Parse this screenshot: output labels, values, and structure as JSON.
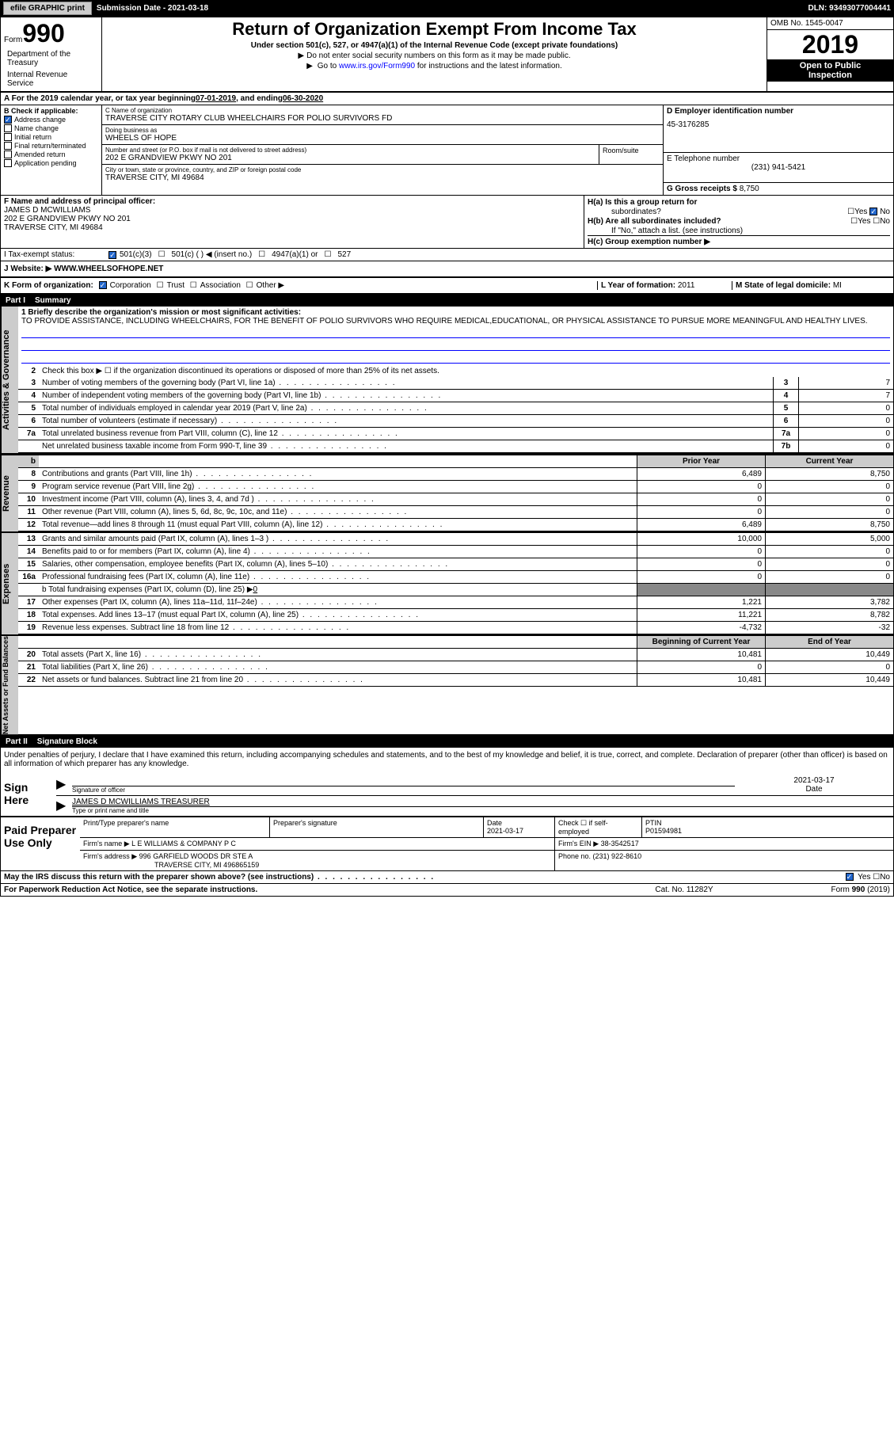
{
  "header": {
    "efile_btn": "efile GRAPHIC print",
    "sub_date_label": "Submission Date - 2021-03-18",
    "dln": "DLN: 93493077004441"
  },
  "form": {
    "form_word": "Form",
    "form_number": "990",
    "title": "Return of Organization Exempt From Income Tax",
    "subtitle": "Under section 501(c), 527, or 4947(a)(1) of the Internal Revenue Code (except private foundations)",
    "ssn_note": "Do not enter social security numbers on this form as it may be made public.",
    "goto_prefix": "Go to ",
    "goto_link": "www.irs.gov/Form990",
    "goto_suffix": " for instructions and the latest information.",
    "dept": "Department of the Treasury",
    "irs": "Internal Revenue Service",
    "omb": "OMB No. 1545-0047",
    "year": "2019",
    "open_public": "Open to Public",
    "inspection": "Inspection"
  },
  "period": {
    "prefix": "A For the 2019 calendar year, or tax year beginning ",
    "begin": "07-01-2019",
    "mid": " , and ending ",
    "end": "06-30-2020"
  },
  "col_b": {
    "label": "B Check if applicable:",
    "items": [
      {
        "label": "Address change",
        "checked": true
      },
      {
        "label": "Name change",
        "checked": false
      },
      {
        "label": "Initial return",
        "checked": false
      },
      {
        "label": "Final return/terminated",
        "checked": false
      },
      {
        "label": "Amended return",
        "checked": false
      },
      {
        "label": "Application pending",
        "checked": false
      }
    ]
  },
  "col_c": {
    "name_label": "C Name of organization",
    "name": "TRAVERSE CITY ROTARY CLUB WHEELCHAIRS FOR POLIO SURVIVORS FD",
    "dba_label": "Doing business as",
    "dba": "WHEELS OF HOPE",
    "addr_label": "Number and street (or P.O. box if mail is not delivered to street address)",
    "addr": "202 E GRANDVIEW PKWY NO 201",
    "room_label": "Room/suite",
    "city_label": "City or town, state or province, country, and ZIP or foreign postal code",
    "city": "TRAVERSE CITY, MI  49684"
  },
  "col_d": {
    "ein_label": "D Employer identification number",
    "ein": "45-3176285",
    "phone_label": "E Telephone number",
    "phone": "(231) 941-5421",
    "gross_label": "G Gross receipts $ ",
    "gross": "8,750"
  },
  "col_f": {
    "label": "F  Name and address of principal officer:",
    "name": "JAMES D MCWILLIAMS",
    "addr1": "202 E GRANDVIEW PKWY NO 201",
    "addr2": "TRAVERSE CITY, MI  49684"
  },
  "col_h": {
    "ha_label": "H(a)  Is this a group return for",
    "ha_sub": "subordinates?",
    "ha_yes": "Yes",
    "ha_no": "No",
    "hb_label": "H(b)  Are all subordinates included?",
    "hb_yes": "Yes",
    "hb_no": "No",
    "hb_note": "If \"No,\" attach a list. (see instructions)",
    "hc_label": "H(c)  Group exemption number ▶"
  },
  "tax_exempt": {
    "label": "I    Tax-exempt status:",
    "opt1": "501(c)(3)",
    "opt2": "501(c) (  ) ◀ (insert no.)",
    "opt3": "4947(a)(1) or",
    "opt4": "527"
  },
  "website": {
    "label": "J   Website: ▶",
    "value": "WWW.WHEELSOFHOPE.NET"
  },
  "k_row": {
    "label": "K Form of organization:",
    "corp": "Corporation",
    "trust": "Trust",
    "assoc": "Association",
    "other": "Other ▶",
    "l_label": "L Year of formation: ",
    "l_val": "2011",
    "m_label": "M State of legal domicile: ",
    "m_val": "MI"
  },
  "part1": {
    "num": "Part I",
    "title": "Summary"
  },
  "activities": {
    "side": "Activities & Governance",
    "line1_label": "1  Briefly describe the organization's mission or most significant activities:",
    "mission": "TO PROVIDE ASSISTANCE, INCLUDING WHEELCHAIRS, FOR THE BENEFIT OF POLIO SURVIVORS WHO REQUIRE MEDICAL,EDUCATIONAL, OR PHYSICAL ASSISTANCE TO PURSUE MORE MEANINGFUL AND HEALTHY LIVES.",
    "line2": "Check this box ▶ ☐  if the organization discontinued its operations or disposed of more than 25% of its net assets.",
    "rows": [
      {
        "num": "3",
        "text": "Number of voting members of the governing body (Part VI, line 1a)",
        "box": "3",
        "val": "7"
      },
      {
        "num": "4",
        "text": "Number of independent voting members of the governing body (Part VI, line 1b)",
        "box": "4",
        "val": "7"
      },
      {
        "num": "5",
        "text": "Total number of individuals employed in calendar year 2019 (Part V, line 2a)",
        "box": "5",
        "val": "0"
      },
      {
        "num": "6",
        "text": "Total number of volunteers (estimate if necessary)",
        "box": "6",
        "val": "0"
      },
      {
        "num": "7a",
        "text": "Total unrelated business revenue from Part VIII, column (C), line 12",
        "box": "7a",
        "val": "0"
      },
      {
        "num": "",
        "text": "Net unrelated business taxable income from Form 990-T, line 39",
        "box": "7b",
        "val": "0"
      }
    ]
  },
  "revenue": {
    "side": "Revenue",
    "prior_hdr": "Prior Year",
    "curr_hdr": "Current Year",
    "rows": [
      {
        "num": "8",
        "text": "Contributions and grants (Part VIII, line 1h)",
        "prior": "6,489",
        "curr": "8,750"
      },
      {
        "num": "9",
        "text": "Program service revenue (Part VIII, line 2g)",
        "prior": "0",
        "curr": "0"
      },
      {
        "num": "10",
        "text": "Investment income (Part VIII, column (A), lines 3, 4, and 7d )",
        "prior": "0",
        "curr": "0"
      },
      {
        "num": "11",
        "text": "Other revenue (Part VIII, column (A), lines 5, 6d, 8c, 9c, 10c, and 11e)",
        "prior": "0",
        "curr": "0"
      },
      {
        "num": "12",
        "text": "Total revenue—add lines 8 through 11 (must equal Part VIII, column (A), line 12)",
        "prior": "6,489",
        "curr": "8,750"
      }
    ]
  },
  "expenses": {
    "side": "Expenses",
    "rows": [
      {
        "num": "13",
        "text": "Grants and similar amounts paid (Part IX, column (A), lines 1–3 )",
        "prior": "10,000",
        "curr": "5,000"
      },
      {
        "num": "14",
        "text": "Benefits paid to or for members (Part IX, column (A), line 4)",
        "prior": "0",
        "curr": "0"
      },
      {
        "num": "15",
        "text": "Salaries, other compensation, employee benefits (Part IX, column (A), lines 5–10)",
        "prior": "0",
        "curr": "0"
      },
      {
        "num": "16a",
        "text": "Professional fundraising fees (Part IX, column (A), line 11e)",
        "prior": "0",
        "curr": "0"
      }
    ],
    "line_b": "b  Total fundraising expenses (Part IX, column (D), line 25) ▶",
    "line_b_val": "0",
    "rows2": [
      {
        "num": "17",
        "text": "Other expenses (Part IX, column (A), lines 11a–11d, 11f–24e)",
        "prior": "1,221",
        "curr": "3,782"
      },
      {
        "num": "18",
        "text": "Total expenses. Add lines 13–17 (must equal Part IX, column (A), line 25)",
        "prior": "11,221",
        "curr": "8,782"
      },
      {
        "num": "19",
        "text": "Revenue less expenses. Subtract line 18 from line 12",
        "prior": "-4,732",
        "curr": "-32"
      }
    ]
  },
  "netassets": {
    "side": "Net Assets or Fund Balances",
    "begin_hdr": "Beginning of Current Year",
    "end_hdr": "End of Year",
    "rows": [
      {
        "num": "20",
        "text": "Total assets (Part X, line 16)",
        "prior": "10,481",
        "curr": "10,449"
      },
      {
        "num": "21",
        "text": "Total liabilities (Part X, line 26)",
        "prior": "0",
        "curr": "0"
      },
      {
        "num": "22",
        "text": "Net assets or fund balances. Subtract line 21 from line 20",
        "prior": "10,481",
        "curr": "10,449"
      }
    ]
  },
  "part2": {
    "num": "Part II",
    "title": "Signature Block"
  },
  "sig": {
    "penalties": "Under penalties of perjury, I declare that I have examined this return, including accompanying schedules and statements, and to the best of my knowledge and belief, it is true, correct, and complete. Declaration of preparer (other than officer) is based on all information of which preparer has any knowledge.",
    "sign_here": "Sign Here",
    "sig_officer_label": "Signature of officer",
    "date_label": "Date",
    "date_val": "2021-03-17",
    "name_title": "JAMES D MCWILLIAMS  TREASURER",
    "name_title_label": "Type or print name and title"
  },
  "paid": {
    "label": "Paid Preparer Use Only",
    "print_name_label": "Print/Type preparer's name",
    "prep_sig_label": "Preparer's signature",
    "date_label": "Date",
    "date_val": "2021-03-17",
    "check_label": "Check ☐ if self-employed",
    "ptin_label": "PTIN",
    "ptin": "P01594981",
    "firm_name_label": "Firm's name    ▶",
    "firm_name": "L E WILLIAMS & COMPANY P C",
    "firm_ein_label": "Firm's EIN ▶",
    "firm_ein": "38-3542517",
    "firm_addr_label": "Firm's address ▶",
    "firm_addr1": "996 GARFIELD WOODS DR STE A",
    "firm_addr2": "TRAVERSE CITY, MI  496865159",
    "phone_label": "Phone no. ",
    "phone": "(231) 922-8610"
  },
  "discuss": {
    "text": "May the IRS discuss this return with the preparer shown above? (see instructions)",
    "yes": "Yes",
    "no": "No"
  },
  "footer": {
    "left": "For Paperwork Reduction Act Notice, see the separate instructions.",
    "mid": "Cat. No. 11282Y",
    "right": "Form 990 (2019)"
  },
  "colors": {
    "black": "#000000",
    "gray": "#cccccc",
    "blue_link": "#0000ff",
    "check_blue": "#2266cc"
  }
}
